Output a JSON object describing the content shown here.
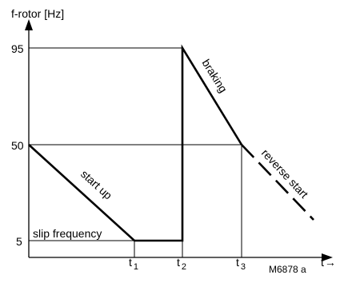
{
  "diagram": {
    "y_axis_label": "f-rotor [Hz]",
    "x_axis_label": "t",
    "x_axis_arrow": "→",
    "y_ticks": [
      "95",
      "50",
      "5"
    ],
    "x_ticks": [
      {
        "main": "t",
        "sub": "1"
      },
      {
        "main": "t",
        "sub": "2"
      },
      {
        "main": "t",
        "sub": "3"
      }
    ],
    "annotations": {
      "slip": "slip frequency",
      "start_up": "start up",
      "braking": "braking",
      "reverse_start": "reverse start"
    },
    "reference_code": "M6878  a"
  }
}
